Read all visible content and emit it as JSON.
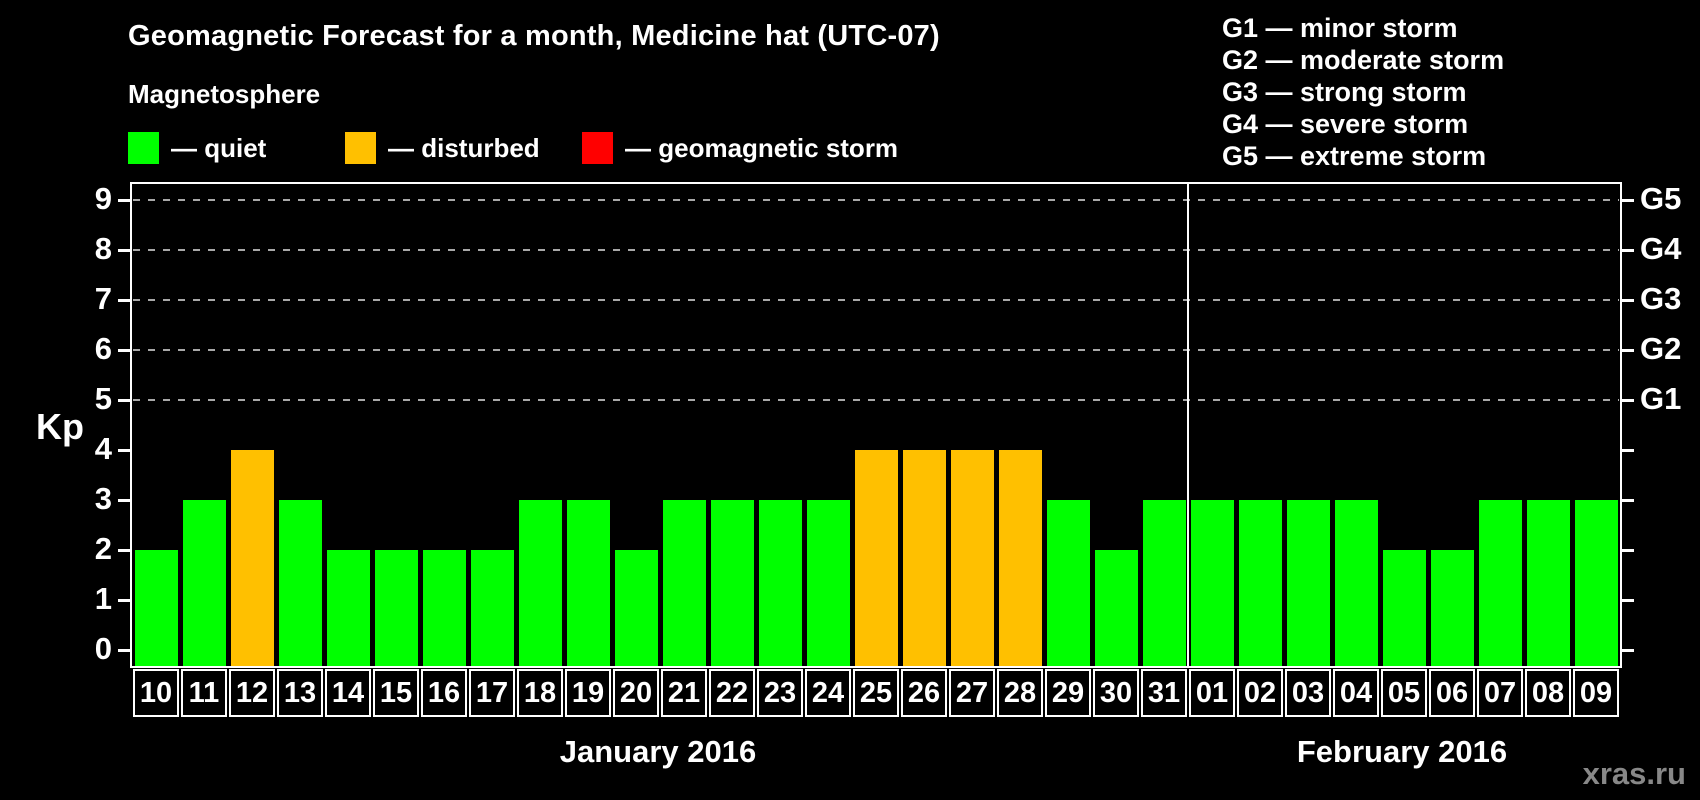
{
  "header": {
    "title": "Geomagnetic Forecast for a month, Medicine hat (UTC-07)",
    "subtitle": "Magnetosphere"
  },
  "legend": {
    "items": [
      {
        "name": "quiet",
        "label": "— quiet",
        "color": "#00ff00"
      },
      {
        "name": "disturbed",
        "label": "— disturbed",
        "color": "#ffc000"
      },
      {
        "name": "geomagnetic-storm",
        "label": "— geomagnetic storm",
        "color": "#ff0000"
      }
    ]
  },
  "storm_scale_legend": {
    "items": [
      "G1 — minor storm",
      "G2 — moderate storm",
      "G3 — strong storm",
      "G4 — severe storm",
      "G5 — extreme storm"
    ]
  },
  "chart_data": {
    "type": "bar",
    "title": "Geomagnetic Forecast for a month, Medicine hat (UTC-07)",
    "ylabel": "Kp",
    "ylim": [
      0,
      9
    ],
    "yticks": [
      0,
      1,
      2,
      3,
      4,
      5,
      6,
      7,
      8,
      9
    ],
    "grid_levels": [
      5,
      6,
      7,
      8,
      9
    ],
    "right_axis_labels": [
      {
        "kp": 5,
        "label": "G1"
      },
      {
        "kp": 6,
        "label": "G2"
      },
      {
        "kp": 7,
        "label": "G3"
      },
      {
        "kp": 8,
        "label": "G4"
      },
      {
        "kp": 9,
        "label": "G5"
      }
    ],
    "categories": [
      "10",
      "11",
      "12",
      "13",
      "14",
      "15",
      "16",
      "17",
      "18",
      "19",
      "20",
      "21",
      "22",
      "23",
      "24",
      "25",
      "26",
      "27",
      "28",
      "29",
      "30",
      "31",
      "01",
      "02",
      "03",
      "04",
      "05",
      "06",
      "07",
      "08",
      "09"
    ],
    "values": [
      2,
      3,
      4,
      3,
      2,
      2,
      2,
      2,
      3,
      3,
      2,
      3,
      3,
      3,
      3,
      4,
      4,
      4,
      4,
      3,
      2,
      3,
      3,
      3,
      3,
      3,
      2,
      2,
      3,
      3,
      3
    ],
    "months": [
      {
        "label": "January 2016",
        "days": 22
      },
      {
        "label": "February 2016",
        "days": 9
      }
    ],
    "colors": {
      "quiet": "#00ff00",
      "disturbed": "#ffc000",
      "storm": "#ff0000"
    },
    "color_rule": {
      "disturbed_min": 4,
      "storm_min": 5
    },
    "legend_position": "top",
    "grid": "dashed horizontal at G1–G5 levels only"
  },
  "watermark": "xras.ru"
}
